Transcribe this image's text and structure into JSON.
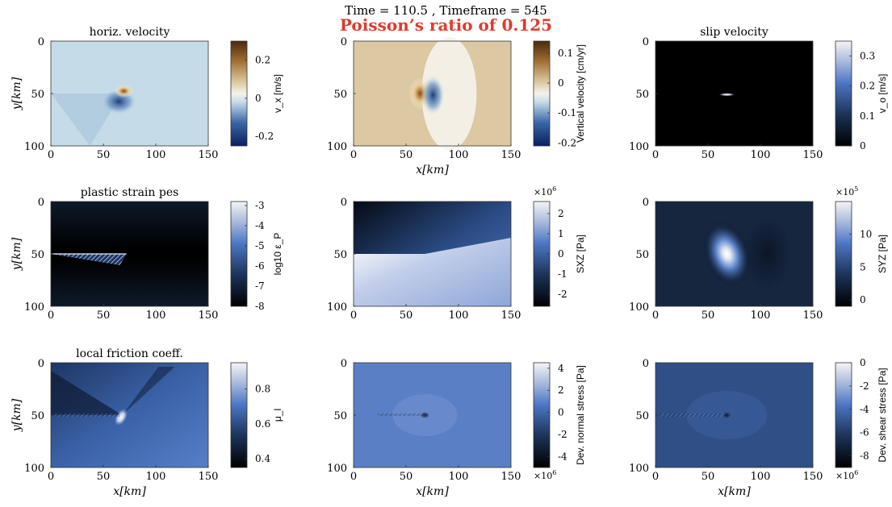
{
  "figure": {
    "title": "Time = 110.5 , Timeframe = 545",
    "subtitle": "Poisson’s ratio of 0.125",
    "subtitle_color": "#e03a2c"
  },
  "axes": {
    "xlabel": "x[km]",
    "ylabel": "y[km]",
    "xticks": [
      "0",
      "50",
      "100",
      "150"
    ],
    "yticks": [
      "0",
      "50",
      "100"
    ],
    "xlim": [
      0,
      150
    ],
    "ylim": [
      0,
      100
    ],
    "y_reversed": true
  },
  "chart_data": [
    {
      "type": "heatmap",
      "id": "horiz-velocity",
      "title": "horiz. velocity",
      "colorbar": {
        "label": "v_x [m/s]",
        "ticks": [
          "0.2",
          "0",
          "-0.2"
        ],
        "tick_values": [
          0.2,
          0,
          -0.2
        ],
        "range": [
          -0.25,
          0.3
        ],
        "colormap": "blue-white-brown"
      },
      "show_ylabel": true,
      "show_xlabel": false,
      "features": [
        {
          "type": "hotspot",
          "x": 68,
          "y": 50
        }
      ]
    },
    {
      "type": "heatmap",
      "id": "vertical-velocity",
      "title": "",
      "colorbar": {
        "label": "Vertical velocity [cm/yr]",
        "ticks": [
          "0.1",
          "0",
          "-0.1",
          "-0.2"
        ],
        "tick_values": [
          0.1,
          0,
          -0.1,
          -0.2
        ],
        "range": [
          -0.21,
          0.14
        ],
        "colormap": "blue-white-brown"
      },
      "show_ylabel": false,
      "show_xlabel": true,
      "features": [
        {
          "type": "dipole",
          "x": 68,
          "y": 50
        }
      ]
    },
    {
      "type": "heatmap",
      "id": "slip-velocity",
      "title": "slip velocity",
      "colorbar": {
        "label": "v_o [m/s]",
        "ticks": [
          "0.3",
          "0.2",
          "0.1",
          "0"
        ],
        "tick_values": [
          0.3,
          0.2,
          0.1,
          0
        ],
        "range": [
          0,
          0.35
        ],
        "colormap": "black-blue-white"
      },
      "show_ylabel": false,
      "show_xlabel": false,
      "features": [
        {
          "type": "point",
          "x": 68,
          "y": 51
        }
      ]
    },
    {
      "type": "heatmap",
      "id": "plastic-strain",
      "title": "plastic strain pes",
      "colorbar": {
        "label": "log10 ε_P",
        "ticks": [
          "-3",
          "-4",
          "-5",
          "-6",
          "-7",
          "-8"
        ],
        "tick_values": [
          -3,
          -4,
          -5,
          -6,
          -7,
          -8
        ],
        "range": [
          -8,
          -2.8
        ],
        "colormap": "black-blue-white"
      },
      "show_ylabel": true,
      "show_xlabel": false,
      "features": [
        {
          "type": "wedge",
          "x0": 0,
          "x1": 72,
          "y": 50
        }
      ]
    },
    {
      "type": "heatmap",
      "id": "sxz",
      "title": "",
      "colorbar": {
        "label": "SXZ [Pa]",
        "exponent": "×10",
        "exponent_power": "6",
        "ticks": [
          "2",
          "1",
          "0",
          "-1",
          "-2"
        ],
        "tick_values": [
          2,
          1,
          0,
          -1,
          -2
        ],
        "range": [
          -2.6,
          2.6
        ],
        "colormap": "black-blue-white"
      },
      "show_ylabel": false,
      "show_xlabel": false,
      "features": [
        {
          "type": "step",
          "x": 68,
          "y": 50
        }
      ]
    },
    {
      "type": "heatmap",
      "id": "syz",
      "title": "",
      "colorbar": {
        "label": "SYZ [Pa]",
        "exponent": "×10",
        "exponent_power": "5",
        "ticks": [
          "10",
          "5",
          "0"
        ],
        "tick_values": [
          10,
          5,
          0
        ],
        "range": [
          -1,
          15
        ],
        "colormap": "black-blue-white"
      },
      "show_ylabel": false,
      "show_xlabel": false,
      "features": [
        {
          "type": "blob",
          "x": 68,
          "y": 50
        }
      ]
    },
    {
      "type": "heatmap",
      "id": "friction",
      "title": "local friction coeff.",
      "colorbar": {
        "label": "μ_l",
        "ticks": [
          "0.8",
          "0.6",
          "0.4"
        ],
        "tick_values": [
          0.8,
          0.6,
          0.4
        ],
        "range": [
          0.35,
          0.95
        ],
        "colormap": "black-blue-white"
      },
      "show_ylabel": true,
      "show_xlabel": true,
      "features": [
        {
          "type": "hotspot",
          "x": 68,
          "y": 50
        }
      ]
    },
    {
      "type": "heatmap",
      "id": "dev-normal",
      "title": "",
      "colorbar": {
        "label": "Dev. normal stress [Pa]",
        "exponent": "×10",
        "exponent_power": "6",
        "exponent_position": "bottom",
        "ticks": [
          "4",
          "2",
          "0",
          "-2",
          "-4"
        ],
        "tick_values": [
          4,
          2,
          0,
          -2,
          -4
        ],
        "range": [
          -5,
          4.5
        ],
        "colormap": "black-blue-white"
      },
      "show_ylabel": false,
      "show_xlabel": true,
      "features": [
        {
          "type": "point",
          "x": 68,
          "y": 50
        }
      ]
    },
    {
      "type": "heatmap",
      "id": "dev-shear",
      "title": "",
      "colorbar": {
        "label": "Dev. shear stress [Pa]",
        "exponent": "×10",
        "exponent_power": "6",
        "exponent_position": "bottom",
        "ticks": [
          "0",
          "-2",
          "-4",
          "-6",
          "-8"
        ],
        "tick_values": [
          0,
          -2,
          -4,
          -6,
          -8
        ],
        "range": [
          -9,
          0
        ],
        "colormap": "black-blue-white"
      },
      "show_ylabel": false,
      "show_xlabel": true,
      "features": [
        {
          "type": "point",
          "x": 68,
          "y": 50
        }
      ]
    }
  ]
}
